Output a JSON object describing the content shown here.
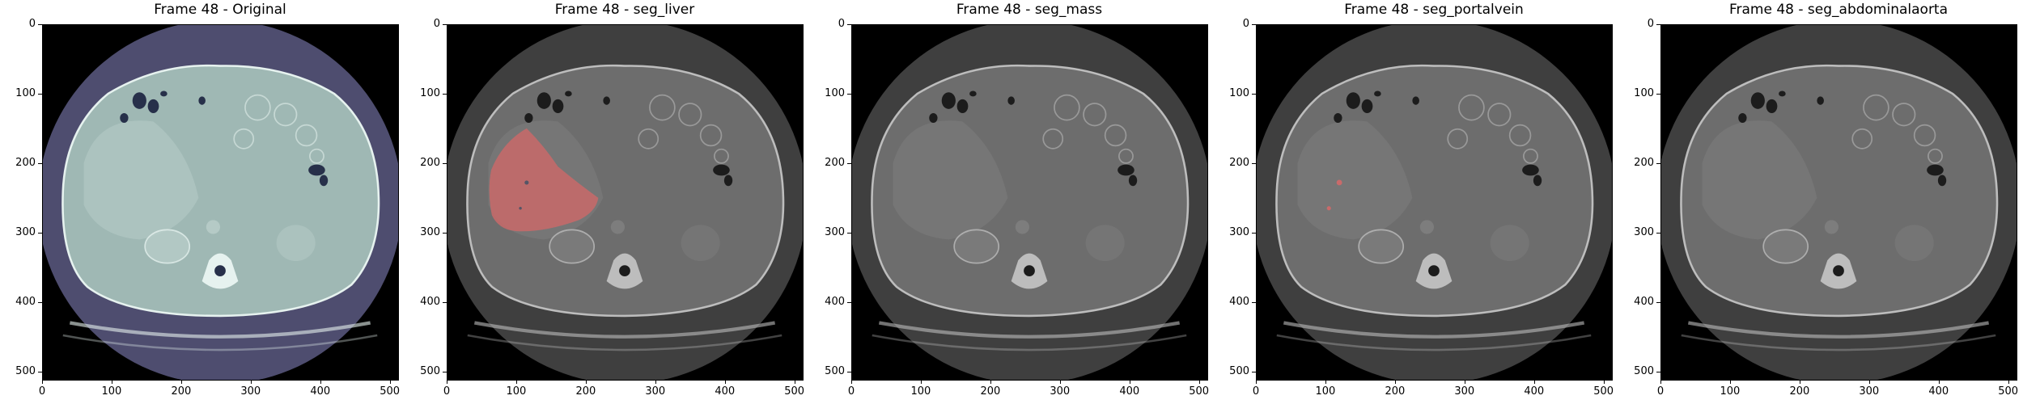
{
  "figure": {
    "panels": [
      {
        "id": "original",
        "title": "Frame 48 - Original",
        "tint": "original",
        "overlay": "none"
      },
      {
        "id": "seg_liver",
        "title": "Frame 48 - seg_liver",
        "tint": "gray",
        "overlay": "liver"
      },
      {
        "id": "seg_mass",
        "title": "Frame 48 - seg_mass",
        "tint": "gray",
        "overlay": "none"
      },
      {
        "id": "seg_portalvein",
        "title": "Frame 48 - seg_portalvein",
        "tint": "gray",
        "overlay": "portalvein"
      },
      {
        "id": "seg_abdominalaorta",
        "title": "Frame 48 - seg_abdominalaorta",
        "tint": "gray",
        "overlay": "none"
      }
    ],
    "x_ticks": [
      "0",
      "100",
      "200",
      "300",
      "400",
      "500"
    ],
    "y_ticks": [
      "0",
      "100",
      "200",
      "300",
      "400",
      "500"
    ],
    "image_size": 512,
    "colors": {
      "background": "#000000",
      "original_body": "#9fb8b4",
      "original_fov": "#4e4d6f",
      "gray_body": "#6d6d6d",
      "gray_fov": "#3f3f3f",
      "segmentation": "#c96a6a"
    }
  }
}
